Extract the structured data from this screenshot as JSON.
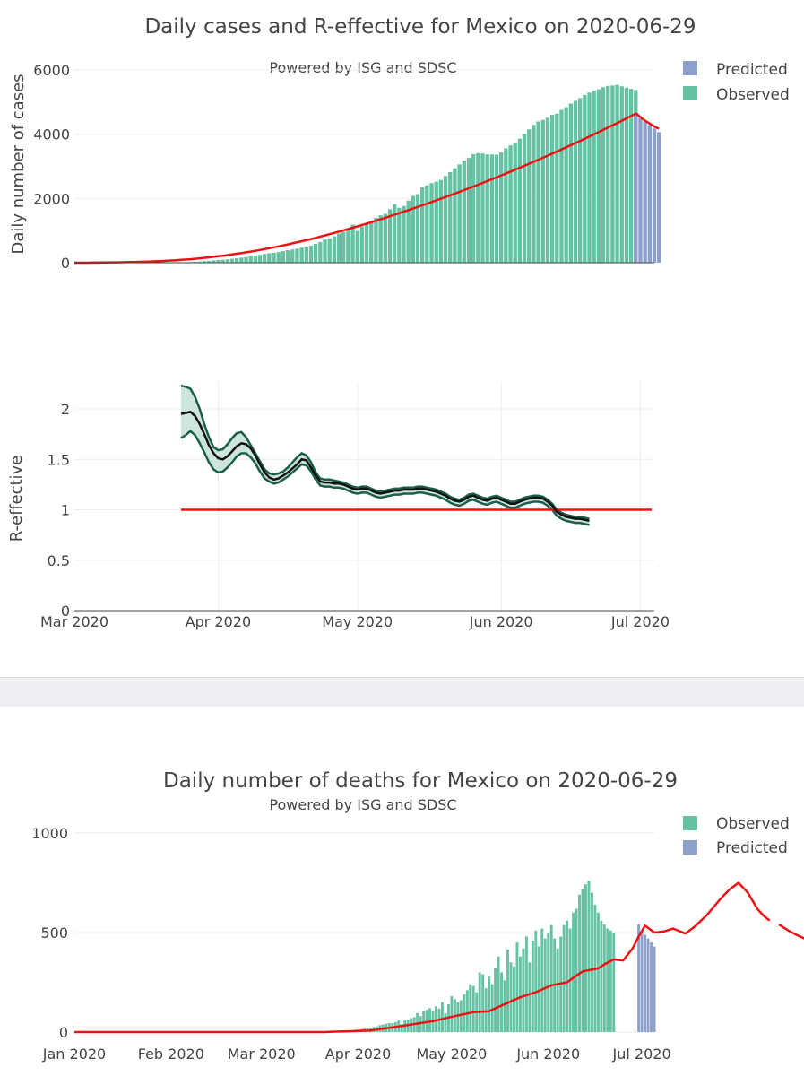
{
  "colors": {
    "observed": "#66c2a5",
    "predicted": "#8da0cb",
    "trend": "#ee1111",
    "r_line": "#111111",
    "r_band_edge": "#1b5e4b",
    "r_band_fill": "#cde5dc",
    "threshold": "#ee1111"
  },
  "chart_data": [
    {
      "type": "bar",
      "id": "cases",
      "title": "Daily cases and R-effective for Mexico on 2020-06-29",
      "subtitle": "Powered by ISG and SDSC",
      "ylabel": "Daily number of cases",
      "ylim": [
        0,
        6300
      ],
      "yticks": [
        0,
        2000,
        4000,
        6000
      ],
      "ytick_labels": [
        "0",
        "2000",
        "4000",
        "6000"
      ],
      "x_start": "2020-03-01",
      "legend": [
        "Predicted",
        "Observed"
      ],
      "observed_start": "2020-03-01",
      "observed": [
        0,
        0,
        0,
        0,
        0,
        0,
        0,
        0,
        0,
        0,
        0,
        0,
        0,
        0,
        0,
        0,
        0,
        0,
        0,
        0,
        0,
        6,
        7,
        11,
        16,
        20,
        28,
        36,
        49,
        58,
        72,
        81,
        95,
        106,
        124,
        139,
        158,
        176,
        201,
        225,
        248,
        275,
        296,
        310,
        332,
        360,
        390,
        409,
        435,
        465,
        499,
        530,
        587,
        645,
        722,
        751,
        821,
        906,
        956,
        1036,
        1186,
        989,
        1133,
        1227,
        1292,
        1399,
        1475,
        1524,
        1660,
        1825,
        1710,
        1766,
        1934,
        2081,
        2134,
        2344,
        2409,
        2479,
        2521,
        2576,
        2698,
        2821,
        2940,
        3061,
        3183,
        3261,
        3377,
        3410,
        3401,
        3372,
        3370,
        3363,
        3432,
        3559,
        3651,
        3721,
        3860,
        4008,
        4150,
        4292,
        4395,
        4442,
        4512,
        4606,
        4641,
        4757,
        4841,
        4955,
        5037,
        5125,
        5222,
        5294,
        5356,
        5396,
        5462,
        5502,
        5515,
        5538,
        5490,
        5449,
        5412,
        5377
      ],
      "predicted_start": "2020-06-30",
      "predicted": [
        4629,
        4510,
        4398,
        4288,
        4174,
        4065
      ],
      "trend_observed": [
        0,
        0,
        0,
        0,
        2,
        4,
        6,
        8,
        10,
        12,
        14,
        17,
        20,
        23,
        27,
        31,
        36,
        41,
        47,
        54,
        61,
        69,
        78,
        88,
        99,
        110,
        123,
        137,
        151,
        167,
        183,
        200,
        218,
        237,
        257,
        278,
        300,
        323,
        347,
        371,
        397,
        424,
        451,
        480,
        509,
        539,
        570,
        602,
        635,
        668,
        703,
        738,
        774,
        811,
        849,
        887,
        926,
        966,
        1006,
        1047,
        1089,
        1131,
        1174,
        1218,
        1262,
        1307,
        1352,
        1398,
        1445,
        1492,
        1540,
        1588,
        1637,
        1686,
        1736,
        1786,
        1837,
        1888,
        1940,
        1992,
        2045,
        2098,
        2152,
        2206,
        2261,
        2316,
        2372,
        2428,
        2485,
        2542,
        2600,
        2658,
        2717,
        2776,
        2836,
        2896,
        2957,
        3018,
        3080,
        3142,
        3205,
        3268,
        3332,
        3396,
        3461,
        3526,
        3592,
        3658,
        3725,
        3792,
        3860,
        3928,
        3997,
        4066,
        4136,
        4206,
        4277,
        4348,
        4420,
        4492,
        4565,
        4638
      ],
      "trend_predicted": [
        4660,
        4530,
        4420,
        4330,
        4240,
        4170
      ]
    },
    {
      "type": "line",
      "id": "reff",
      "ylabel": "R-effective",
      "ylim": [
        0,
        2.35
      ],
      "yticks": [
        0,
        0.5,
        1,
        1.5,
        2
      ],
      "ytick_labels": [
        "0",
        "0.5",
        "1",
        "1.5",
        "2"
      ],
      "xtick_labels": [
        "Mar 2020",
        "Apr 2020",
        "May 2020",
        "Jun 2020",
        "Jul 2020"
      ],
      "xtick_dates": [
        "2020-03-01",
        "2020-04-01",
        "2020-05-01",
        "2020-06-01",
        "2020-07-01"
      ],
      "x_range": [
        "2020-03-01",
        "2020-07-04"
      ],
      "threshold": 1,
      "r_start": "2020-03-24",
      "r_mean": [
        1.95,
        1.96,
        1.97,
        1.93,
        1.85,
        1.75,
        1.64,
        1.56,
        1.51,
        1.5,
        1.53,
        1.58,
        1.63,
        1.66,
        1.65,
        1.61,
        1.54,
        1.45,
        1.37,
        1.32,
        1.3,
        1.31,
        1.34,
        1.37,
        1.41,
        1.45,
        1.5,
        1.49,
        1.42,
        1.34,
        1.28,
        1.27,
        1.27,
        1.26,
        1.26,
        1.25,
        1.23,
        1.21,
        1.2,
        1.21,
        1.21,
        1.19,
        1.17,
        1.16,
        1.17,
        1.18,
        1.19,
        1.19,
        1.2,
        1.2,
        1.2,
        1.21,
        1.21,
        1.2,
        1.19,
        1.18,
        1.16,
        1.14,
        1.11,
        1.09,
        1.08,
        1.1,
        1.13,
        1.14,
        1.12,
        1.1,
        1.09,
        1.11,
        1.12,
        1.1,
        1.08,
        1.06,
        1.06,
        1.08,
        1.1,
        1.11,
        1.12,
        1.12,
        1.11,
        1.08,
        1.04,
        0.98,
        0.95,
        0.93,
        0.92,
        0.91,
        0.91,
        0.9,
        0.89
      ],
      "r_upper": [
        2.23,
        2.22,
        2.2,
        2.12,
        2.0,
        1.85,
        1.72,
        1.62,
        1.59,
        1.6,
        1.65,
        1.71,
        1.76,
        1.77,
        1.72,
        1.64,
        1.56,
        1.48,
        1.4,
        1.36,
        1.35,
        1.36,
        1.38,
        1.42,
        1.47,
        1.52,
        1.56,
        1.54,
        1.47,
        1.37,
        1.31,
        1.3,
        1.3,
        1.29,
        1.28,
        1.27,
        1.25,
        1.23,
        1.22,
        1.23,
        1.23,
        1.21,
        1.19,
        1.18,
        1.19,
        1.2,
        1.21,
        1.21,
        1.22,
        1.22,
        1.22,
        1.23,
        1.23,
        1.22,
        1.21,
        1.2,
        1.18,
        1.16,
        1.13,
        1.11,
        1.1,
        1.12,
        1.15,
        1.16,
        1.14,
        1.12,
        1.11,
        1.13,
        1.14,
        1.12,
        1.1,
        1.08,
        1.08,
        1.1,
        1.12,
        1.13,
        1.14,
        1.14,
        1.13,
        1.1,
        1.06,
        1.0,
        0.97,
        0.95,
        0.94,
        0.93,
        0.93,
        0.92,
        0.91
      ],
      "r_lower": [
        1.71,
        1.74,
        1.78,
        1.74,
        1.66,
        1.57,
        1.47,
        1.4,
        1.37,
        1.38,
        1.42,
        1.47,
        1.53,
        1.56,
        1.56,
        1.52,
        1.46,
        1.38,
        1.31,
        1.28,
        1.26,
        1.27,
        1.3,
        1.33,
        1.37,
        1.41,
        1.45,
        1.44,
        1.38,
        1.3,
        1.24,
        1.23,
        1.23,
        1.22,
        1.22,
        1.21,
        1.19,
        1.17,
        1.16,
        1.17,
        1.17,
        1.15,
        1.13,
        1.12,
        1.13,
        1.14,
        1.15,
        1.15,
        1.16,
        1.16,
        1.16,
        1.17,
        1.17,
        1.16,
        1.15,
        1.14,
        1.12,
        1.1,
        1.07,
        1.05,
        1.04,
        1.06,
        1.09,
        1.1,
        1.08,
        1.06,
        1.05,
        1.07,
        1.08,
        1.06,
        1.04,
        1.02,
        1.02,
        1.04,
        1.06,
        1.07,
        1.08,
        1.08,
        1.07,
        1.04,
        1.0,
        0.94,
        0.91,
        0.89,
        0.88,
        0.87,
        0.87,
        0.86,
        0.85
      ]
    },
    {
      "type": "bar",
      "id": "deaths",
      "title": "Daily number of deaths for Mexico on 2020-06-29",
      "subtitle": "Powered by ISG and SDSC",
      "ylabel": "",
      "ylim": [
        0,
        1120
      ],
      "yticks": [
        0,
        500,
        1000
      ],
      "ytick_labels": [
        "0",
        "500",
        "1000"
      ],
      "xtick_labels": [
        "Jan 2020",
        "Feb 2020",
        "Mar 2020",
        "Apr 2020",
        "May 2020",
        "Jun 2020",
        "Jul 2020"
      ],
      "xtick_dates": [
        "2020-01-01",
        "2020-02-01",
        "2020-03-01",
        "2020-04-01",
        "2020-05-01",
        "2020-06-01",
        "2020-07-01"
      ],
      "x_range": [
        "2020-01-01",
        "2020-07-05"
      ],
      "legend": [
        "Observed",
        "Predicted"
      ],
      "observed_start": "2020-03-20",
      "observed": [
        1,
        1,
        1,
        2,
        2,
        3,
        4,
        5,
        6,
        8,
        9,
        11,
        13,
        16,
        18,
        22,
        20,
        25,
        28,
        35,
        38,
        42,
        46,
        45,
        50,
        60,
        40,
        58,
        62,
        70,
        75,
        95,
        80,
        105,
        112,
        120,
        103,
        130,
        118,
        150,
        95,
        140,
        180,
        165,
        150,
        160,
        190,
        210,
        240,
        232,
        200,
        300,
        290,
        220,
        280,
        240,
        320,
        380,
        300,
        260,
        415,
        350,
        330,
        450,
        380,
        420,
        480,
        350,
        460,
        510,
        430,
        520,
        470,
        500,
        538,
        470,
        420,
        480,
        538,
        560,
        520,
        600,
        620,
        690,
        720,
        742,
        760,
        700,
        640,
        600,
        560,
        540,
        520,
        510,
        500
      ],
      "predicted_start": "2020-06-30",
      "predicted": [
        540,
        510,
        490,
        470,
        450,
        430
      ],
      "trend_start": "2020-01-01",
      "trend_observed_sparse": [
        [
          0,
          0
        ],
        [
          80,
          0
        ],
        [
          95,
          8
        ],
        [
          105,
          30
        ],
        [
          115,
          55
        ],
        [
          122,
          80
        ],
        [
          128,
          100
        ],
        [
          133,
          105
        ],
        [
          138,
          140
        ],
        [
          143,
          175
        ],
        [
          148,
          200
        ],
        [
          153,
          235
        ],
        [
          158,
          250
        ],
        [
          163,
          305
        ],
        [
          168,
          320
        ],
        [
          170,
          340
        ],
        [
          173,
          365
        ],
        [
          176,
          360
        ],
        [
          179,
          420
        ],
        [
          181,
          480
        ],
        [
          183,
          535
        ],
        [
          186,
          500
        ],
        [
          189,
          505
        ],
        [
          192,
          520
        ],
        [
          196,
          495
        ],
        [
          199,
          530
        ],
        [
          203,
          590
        ],
        [
          207,
          665
        ],
        [
          210,
          715
        ],
        [
          213,
          750
        ],
        [
          216,
          700
        ],
        [
          219,
          620
        ],
        [
          221,
          585
        ],
        [
          223,
          560
        ]
      ],
      "trend_predicted_sparse": [
        [
          226,
          540
        ],
        [
          229,
          510
        ],
        [
          232,
          485
        ],
        [
          235,
          465
        ],
        [
          238,
          455
        ]
      ]
    }
  ]
}
